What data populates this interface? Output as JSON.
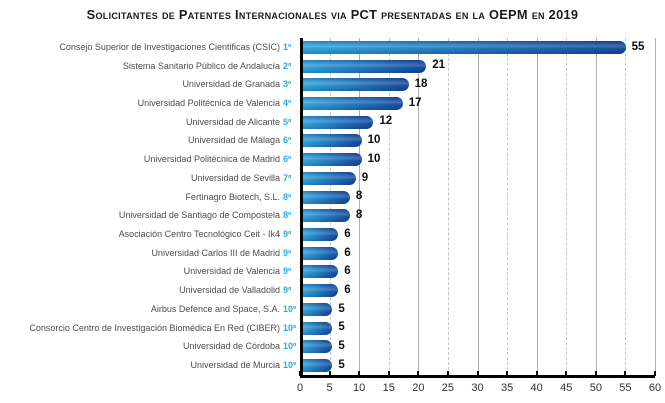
{
  "title": "Solicitantes de Patentes Internacionales via PCT presentadas en la OEPM en 2019",
  "chart_data": {
    "type": "bar",
    "orientation": "horizontal",
    "title": "Solicitantes de Patentes Internacionales via PCT presentadas en la OEPM en 2019",
    "xlabel": "",
    "ylabel": "",
    "xlim": [
      0,
      60
    ],
    "x_ticks": [
      0,
      5,
      10,
      15,
      20,
      25,
      30,
      35,
      40,
      45,
      50,
      55,
      60
    ],
    "grid": "vertical, solid every 10, dashed every 5",
    "legend": "none",
    "entries": [
      {
        "rank": "1º",
        "label": "Consejo Superior de Investigaciones Cientificas (CSIC)",
        "value": 55
      },
      {
        "rank": "2º",
        "label": "Sistema Sanitario Público de Andalucía",
        "value": 21
      },
      {
        "rank": "3º",
        "label": "Universidad de Granada",
        "value": 18
      },
      {
        "rank": "4º",
        "label": "Universidad Politécnica de Valencia",
        "value": 17
      },
      {
        "rank": "5º",
        "label": "Universidad de Alicante",
        "value": 12
      },
      {
        "rank": "6º",
        "label": "Universidad de Málaga",
        "value": 10
      },
      {
        "rank": "6º",
        "label": "Universidad Politécnica de Madrid",
        "value": 10
      },
      {
        "rank": "7º",
        "label": "Universidad de Sevilla",
        "value": 9
      },
      {
        "rank": "8º",
        "label": "Fertinagro Biotech, S.L.",
        "value": 8
      },
      {
        "rank": "8º",
        "label": "Universidad de Santiago de Compostela",
        "value": 8
      },
      {
        "rank": "9º",
        "label": "Asociación Centro Tecnológico Ceit - Ik4",
        "value": 6
      },
      {
        "rank": "9º",
        "label": "Universidad Carlos III de Madrid",
        "value": 6
      },
      {
        "rank": "9º",
        "label": "Universidad de Valencia",
        "value": 6
      },
      {
        "rank": "9º",
        "label": "Universidad de Valladolid",
        "value": 6
      },
      {
        "rank": "10º",
        "label": "Airbus Defence and Space, S.A.",
        "value": 5
      },
      {
        "rank": "10º",
        "label": "Consorcio Centro de Investigación Biomédica En Red (CIBER)",
        "value": 5
      },
      {
        "rank": "10º",
        "label": "Universidad de Córdoba",
        "value": 5
      },
      {
        "rank": "10º",
        "label": "Universidad de Murcia",
        "value": 5
      }
    ],
    "colors": {
      "bar_gradient_start": "#30A5DF",
      "bar_gradient_end": "#154A9E",
      "rank_text": "#29ABE2",
      "category_text": "#4d4d4d",
      "value_text": "#0d0d0d",
      "grid_solid": "#aeaeae",
      "grid_dashed": "#c6c6c6",
      "axis": "#000000"
    }
  }
}
